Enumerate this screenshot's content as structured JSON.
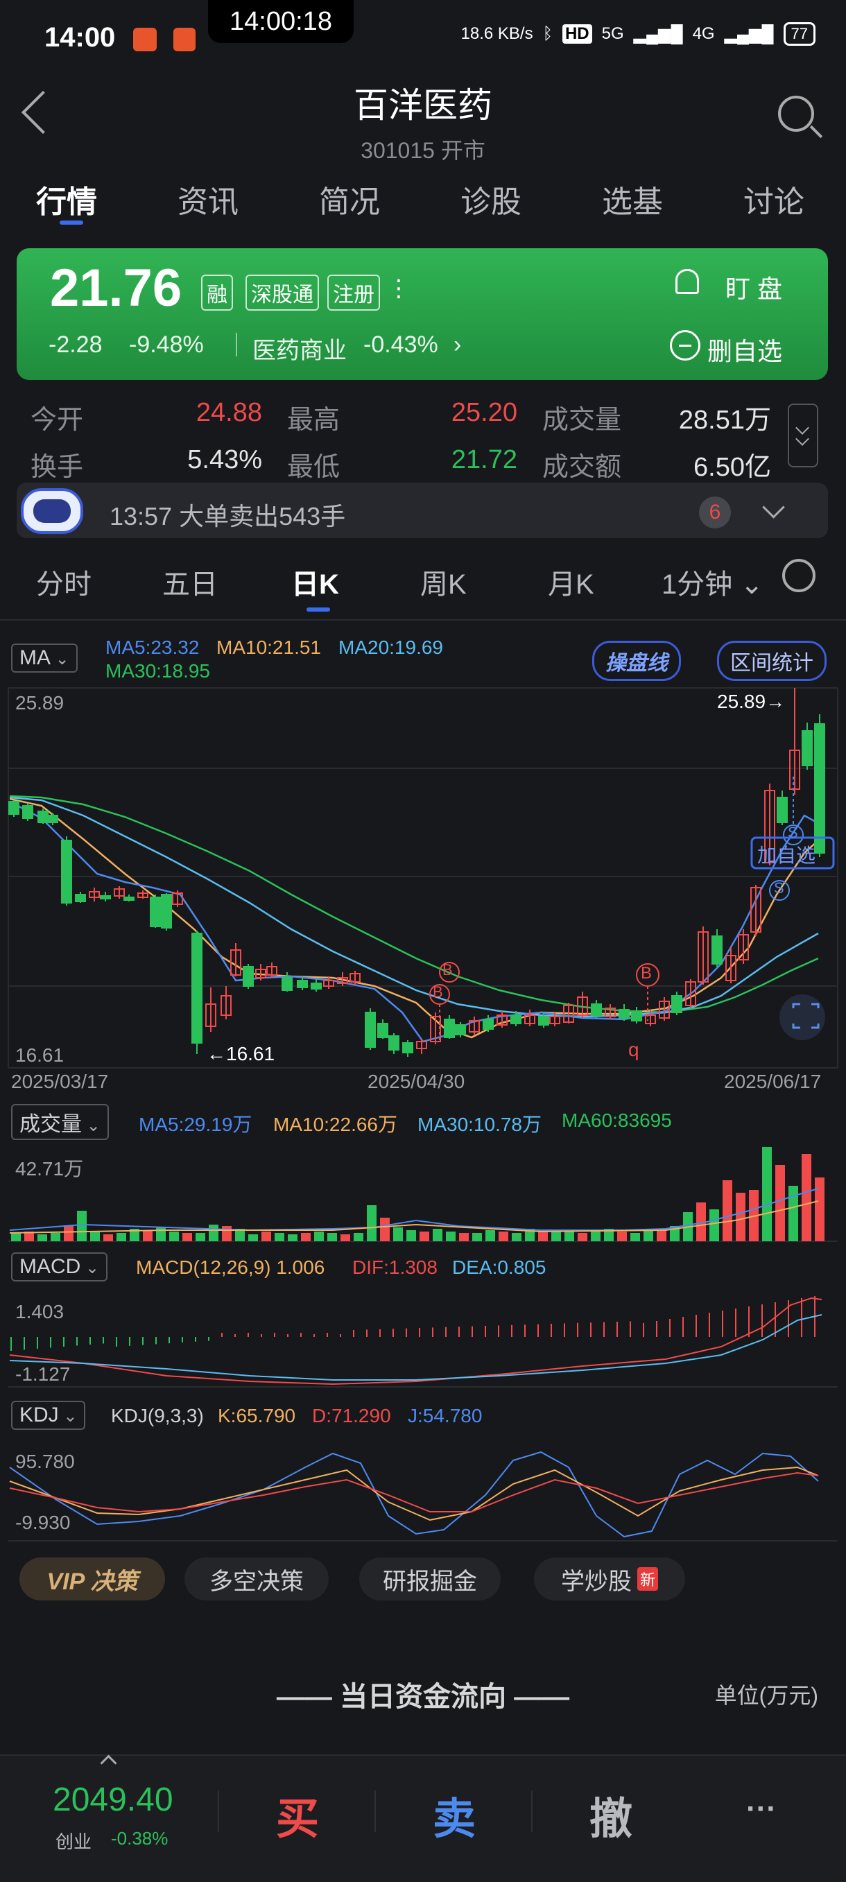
{
  "status_bar": {
    "time": "14:00",
    "center_time": "14:00:18",
    "net_speed": "18.6 KB/s",
    "hd": "HD",
    "signal_1": "5G",
    "signal_2": "4G",
    "battery": "77"
  },
  "header": {
    "title": "百洋医药",
    "subtitle": "301015 开市"
  },
  "tabs": [
    {
      "label": "行情",
      "active": true
    },
    {
      "label": "资讯"
    },
    {
      "label": "简况"
    },
    {
      "label": "诊股"
    },
    {
      "label": "选基"
    },
    {
      "label": "讨论"
    }
  ],
  "quote": {
    "price": "21.76",
    "tags": [
      "融",
      "深股通",
      "注册"
    ],
    "change": "-2.28",
    "change_pct": "-9.48%",
    "sector": "医药商业",
    "sector_pct": "-0.43%",
    "sector_chevron": "›",
    "watch_label": "盯 盘",
    "fav_label": "删自选"
  },
  "stats": [
    {
      "label": "今开",
      "value": "24.88",
      "color": "red"
    },
    {
      "label": "最高",
      "value": "25.20",
      "color": "red"
    },
    {
      "label": "成交量",
      "value": "28.51万",
      "color": "white"
    },
    {
      "label": "换手",
      "value": "5.43%",
      "color": "white"
    },
    {
      "label": "最低",
      "value": "21.72",
      "color": "green"
    },
    {
      "label": "成交额",
      "value": "6.50亿",
      "color": "white"
    }
  ],
  "news": {
    "text": "13:57 大单卖出543手",
    "badge": "6"
  },
  "chart_tabs": [
    {
      "label": "分时"
    },
    {
      "label": "五日"
    },
    {
      "label": "日K",
      "active": true
    },
    {
      "label": "周K"
    },
    {
      "label": "月K"
    },
    {
      "label": "1分钟 ⌄"
    }
  ],
  "kline": {
    "selector": "MA",
    "ma5": "MA5:23.32",
    "ma10": "MA10:21.51",
    "ma20": "MA20:19.69",
    "ma30": "MA30:18.95",
    "btn_operate": "操盘线",
    "btn_range": "区间统计",
    "y_top": "25.89",
    "y_bottom": "16.61",
    "high_marker": "25.89→",
    "low_marker": "←16.61",
    "marker_b": "B",
    "marker_q": "q",
    "marker_s": "S",
    "add_fav": "加自选",
    "dates": [
      "2025/03/17",
      "2025/04/30",
      "2025/06/17"
    ]
  },
  "volume": {
    "selector": "成交量",
    "ma5": "MA5:29.19万",
    "ma10": "MA10:22.66万",
    "ma30": "MA30:10.78万",
    "ma60": "MA60:83695",
    "y_top": "42.71万"
  },
  "macd": {
    "selector": "MACD",
    "params": "MACD(12,26,9) 1.006",
    "dif": "DIF:1.308",
    "dea": "DEA:0.805",
    "y_top": "1.403",
    "y_bottom": "-1.127"
  },
  "kdj": {
    "selector": "KDJ",
    "params": "KDJ(9,3,3)",
    "k": "K:65.790",
    "d": "D:71.290",
    "j": "J:54.780",
    "y_top": "95.780",
    "y_bottom": "-9.930"
  },
  "chips": [
    {
      "label": "VIP 决策"
    },
    {
      "label": "多空决策"
    },
    {
      "label": "研报掘金"
    },
    {
      "label": "学炒股",
      "tag": "新"
    }
  ],
  "fund_flow": {
    "title": "—— 当日资金流向 ——",
    "unit": "单位(万元)"
  },
  "bottom": {
    "index_value": "2049.40",
    "index_name": "创业",
    "index_change": "-0.38%",
    "buy": "买",
    "sell": "卖",
    "cancel": "撤",
    "more": "···"
  },
  "colors": {
    "up": "#f04a4a",
    "down": "#2bc15a",
    "accent": "#3a6cf0"
  }
}
